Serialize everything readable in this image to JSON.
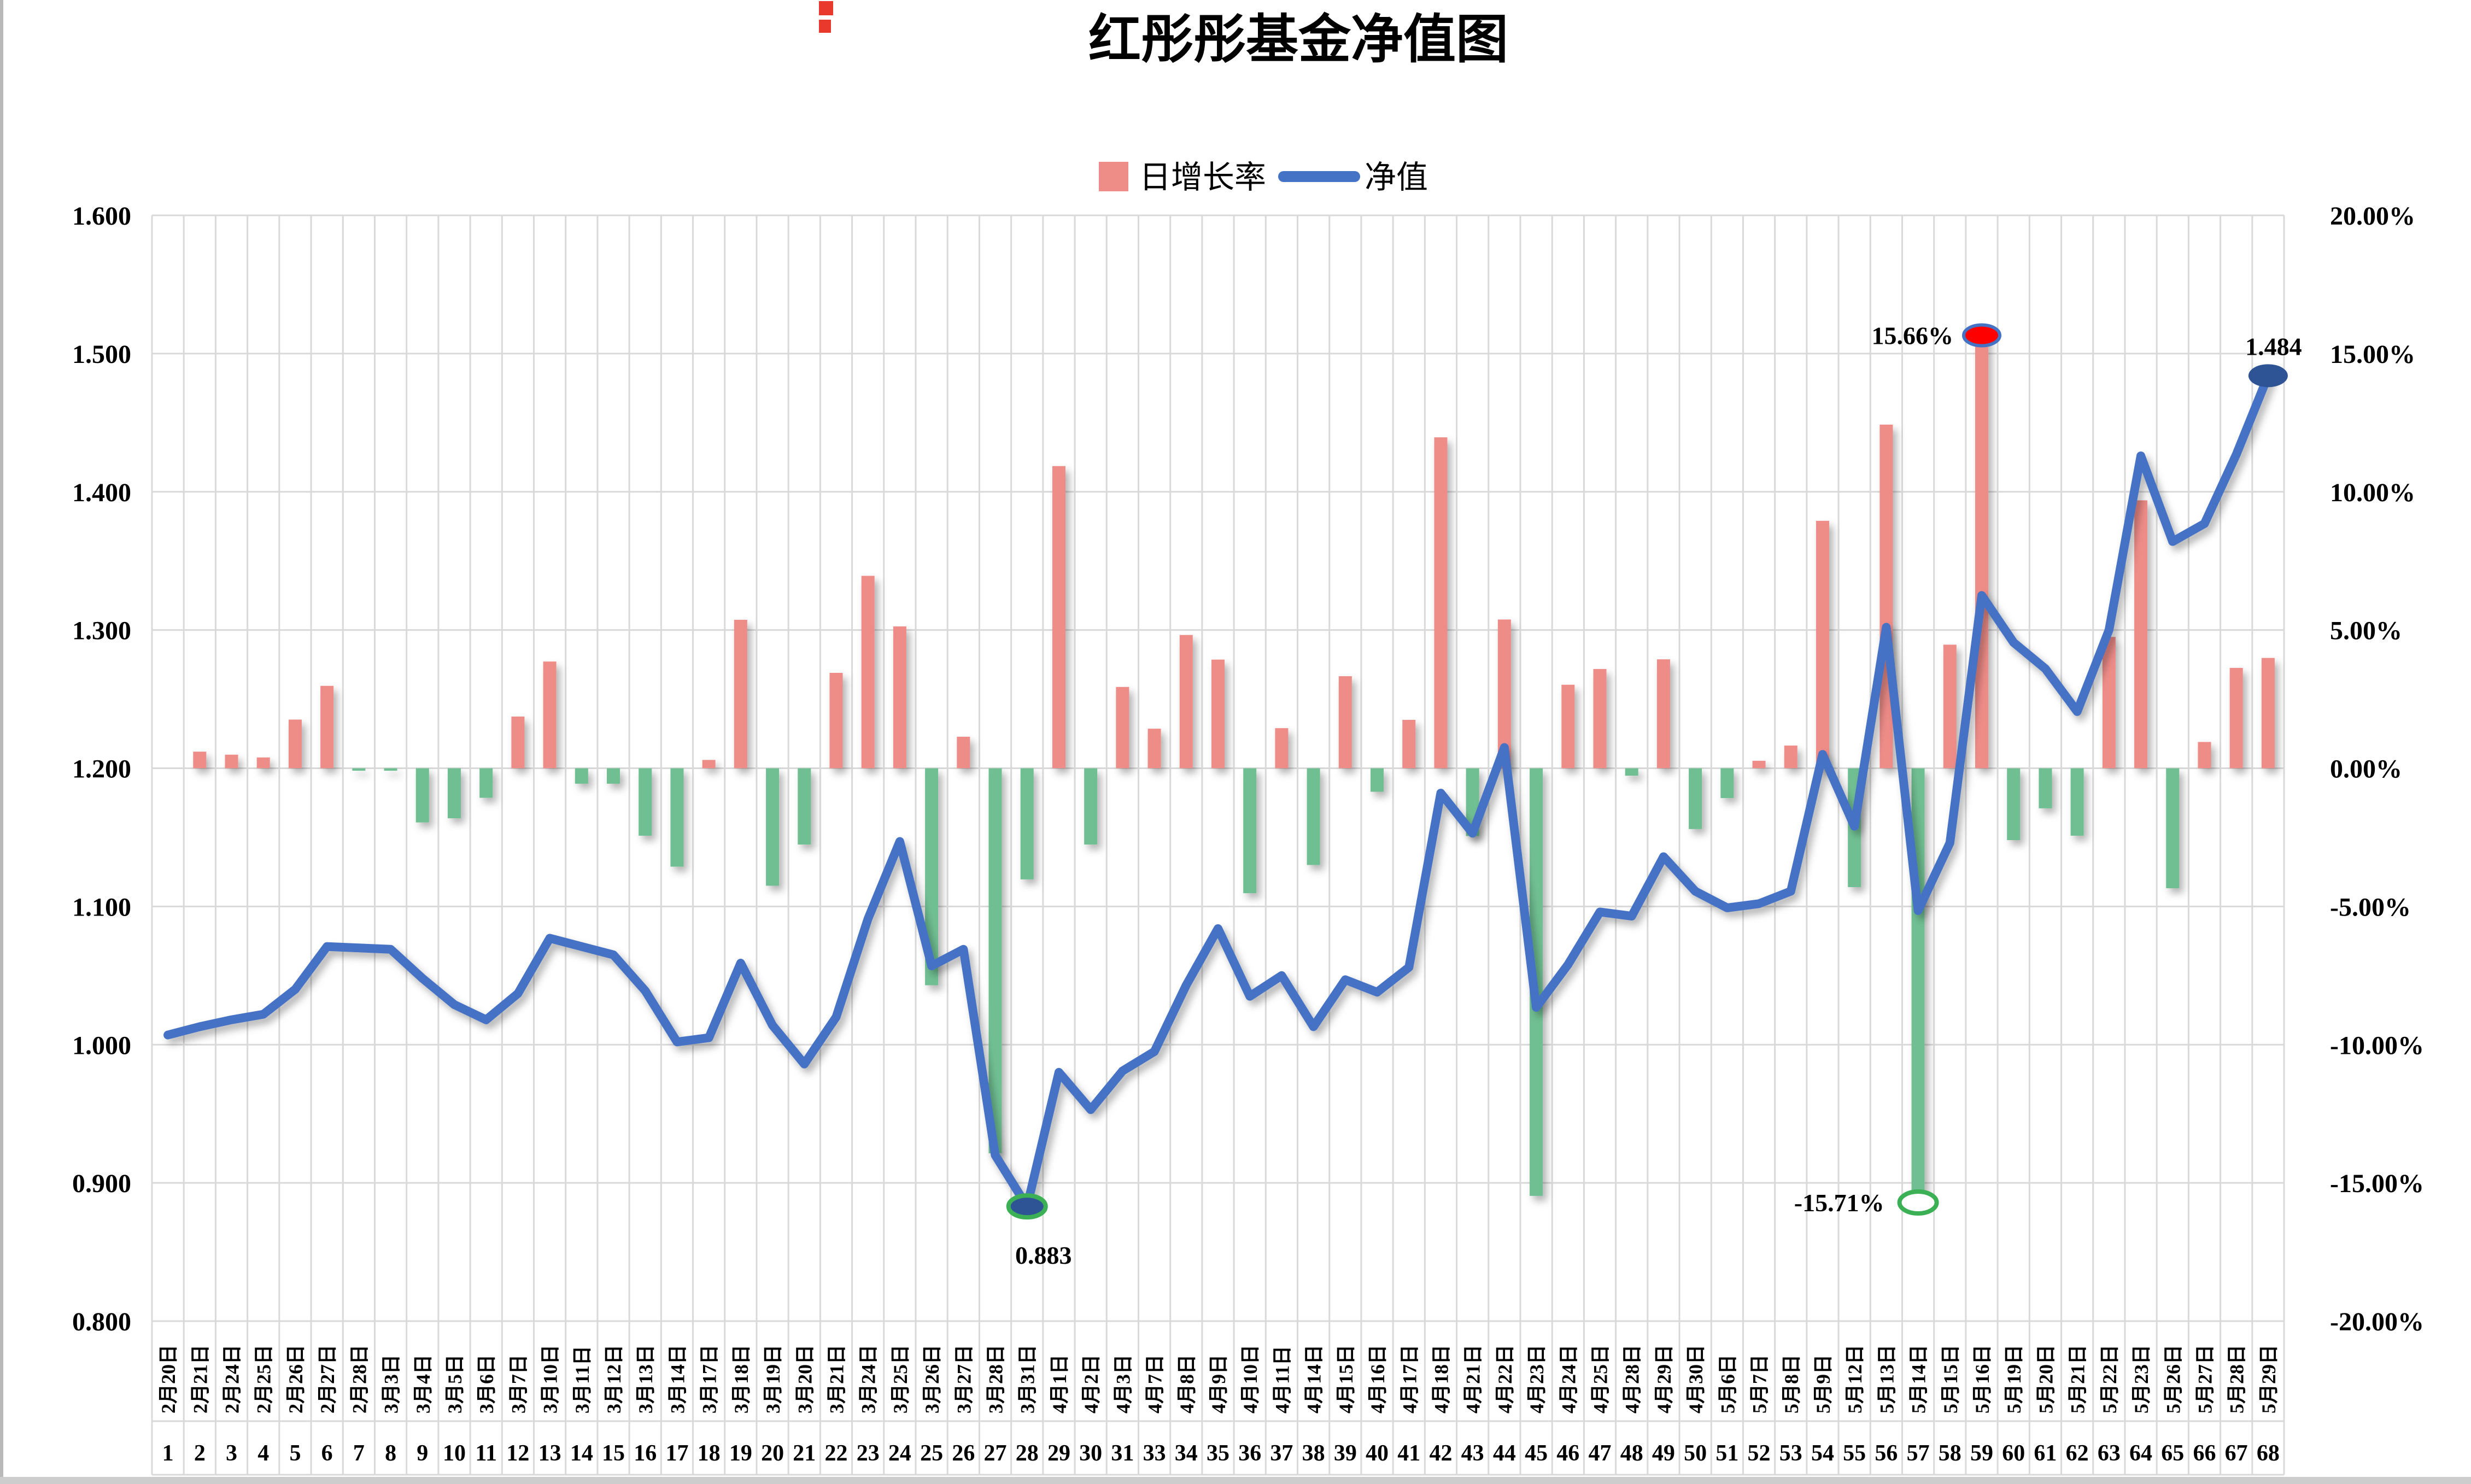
{
  "title": "红彤彤基金净值图",
  "legend": {
    "bar_label": "日增长率",
    "line_label": "净值"
  },
  "colors": {
    "bar_positive": "#ee8c88",
    "bar_negative": "#6fbf92",
    "nav_line": "#4472c4",
    "max_marker": "#fe0000",
    "min_marker_ring": "#3cb054",
    "nav_dot": "#2f5496",
    "grid": "#d9d9d9",
    "text": "#000000"
  },
  "axes": {
    "left_ticks": [
      "1.600",
      "1.500",
      "1.400",
      "1.300",
      "1.200",
      "1.100",
      "1.000",
      "0.900",
      "0.800"
    ],
    "right_ticks": [
      "20.00%",
      "15.00%",
      "10.00%",
      "5.00%",
      "0.00%",
      "-5.00%",
      "-10.00%",
      "-15.00%",
      "-20.00%"
    ]
  },
  "chart_data": {
    "type": "bar",
    "subtype": "combo-bar-line",
    "title": "红彤彤基金净值图",
    "grid": true,
    "legend_position": "top-center",
    "ylim_left": [
      0.8,
      1.6
    ],
    "ylim_right": [
      -20,
      20
    ],
    "categories": [
      "2月20日",
      "2月21日",
      "2月24日",
      "2月25日",
      "2月26日",
      "2月27日",
      "2月28日",
      "3月3日",
      "3月4日",
      "3月5日",
      "3月6日",
      "3月7日",
      "3月10日",
      "3月11日",
      "3月12日",
      "3月13日",
      "3月14日",
      "3月17日",
      "3月18日",
      "3月19日",
      "3月20日",
      "3月21日",
      "3月24日",
      "3月25日",
      "3月26日",
      "3月27日",
      "3月28日",
      "3月31日",
      "4月1日",
      "4月2日",
      "4月3日",
      "4月7日",
      "4月8日",
      "4月9日",
      "4月10日",
      "4月11日",
      "4月14日",
      "4月15日",
      "4月16日",
      "4月17日",
      "4月18日",
      "4月21日",
      "4月22日",
      "4月23日",
      "4月24日",
      "4月25日",
      "4月28日",
      "4月29日",
      "4月30日",
      "5月6日",
      "5月7日",
      "5月8日",
      "5月9日",
      "5月12日",
      "5月13日",
      "5月14日",
      "5月15日",
      "5月16日",
      "5月19日",
      "5月20日",
      "5月21日",
      "5月22日",
      "5月23日",
      "5月26日",
      "5月27日",
      "5月28日",
      "5月29日"
    ],
    "category_numbers": [
      "1",
      "2",
      "3",
      "4",
      "5",
      "6",
      "7",
      "8",
      "9",
      "10",
      "11",
      "12",
      "13",
      "14",
      "15",
      "16",
      "17",
      "18",
      "19",
      "20",
      "21",
      "22",
      "23",
      "24",
      "25",
      "26",
      "27",
      "28",
      "29",
      "30",
      "31",
      "33",
      "34",
      "35",
      "36",
      "37",
      "38",
      "39",
      "40",
      "41",
      "42",
      "43",
      "44",
      "45",
      "46",
      "47",
      "48",
      "49",
      "50",
      "51",
      "52",
      "53",
      "54",
      "55",
      "56",
      "57",
      "58",
      "59",
      "60",
      "61",
      "62",
      "63",
      "64",
      "65",
      "66",
      "67",
      "68"
    ],
    "series": [
      {
        "name": "日增长率",
        "type": "bar",
        "axis": "right",
        "unit": "%",
        "values": [
          null,
          0.6,
          0.49,
          0.39,
          1.76,
          2.98,
          -0.09,
          -0.09,
          -1.96,
          -1.81,
          -1.07,
          1.87,
          3.86,
          -0.56,
          -0.56,
          -2.44,
          -3.56,
          0.3,
          5.37,
          -4.25,
          -2.76,
          3.45,
          6.96,
          5.13,
          -7.85,
          1.14,
          -13.93,
          -4.02,
          10.93,
          -2.76,
          2.94,
          1.43,
          4.82,
          3.93,
          -4.52,
          1.45,
          -3.5,
          3.33,
          -0.85,
          1.75,
          11.97,
          -2.45,
          5.38,
          -15.47,
          3.02,
          3.59,
          -0.27,
          3.94,
          -2.2,
          -1.08,
          0.27,
          0.82,
          8.95,
          -4.3,
          12.43,
          -15.71,
          4.47,
          15.66,
          -2.6,
          -1.45,
          -2.44,
          4.75,
          9.69,
          -4.34,
          0.95,
          3.63,
          3.99
        ]
      },
      {
        "name": "净值",
        "type": "line",
        "axis": "left",
        "values": [
          1.007,
          1.013,
          1.018,
          1.022,
          1.04,
          1.071,
          1.07,
          1.069,
          1.048,
          1.029,
          1.018,
          1.037,
          1.077,
          1.071,
          1.065,
          1.039,
          1.002,
          1.005,
          1.059,
          1.014,
          0.986,
          1.02,
          1.091,
          1.147,
          1.057,
          1.069,
          0.92,
          0.883,
          0.98,
          0.953,
          0.981,
          0.995,
          1.043,
          1.084,
          1.035,
          1.05,
          1.013,
          1.047,
          1.038,
          1.056,
          1.182,
          1.153,
          1.215,
          1.027,
          1.058,
          1.096,
          1.093,
          1.136,
          1.111,
          1.099,
          1.102,
          1.111,
          1.21,
          1.158,
          1.302,
          1.097,
          1.146,
          1.325,
          1.291,
          1.272,
          1.241,
          1.3,
          1.426,
          1.364,
          1.377,
          1.427,
          1.484
        ]
      }
    ],
    "annotations": [
      {
        "id": "max-growth",
        "label": "15.66%",
        "category": "5月16日",
        "series": "日增长率",
        "value": 15.66
      },
      {
        "id": "min-growth",
        "label": "-15.71%",
        "category": "5月14日",
        "series": "日增长率",
        "value": -15.71
      },
      {
        "id": "min-nav",
        "label": "0.883",
        "category": "3月31日",
        "series": "净值",
        "value": 0.883
      },
      {
        "id": "final-nav",
        "label": "1.484",
        "category": "5月29日",
        "series": "净值",
        "value": 1.484
      }
    ]
  }
}
